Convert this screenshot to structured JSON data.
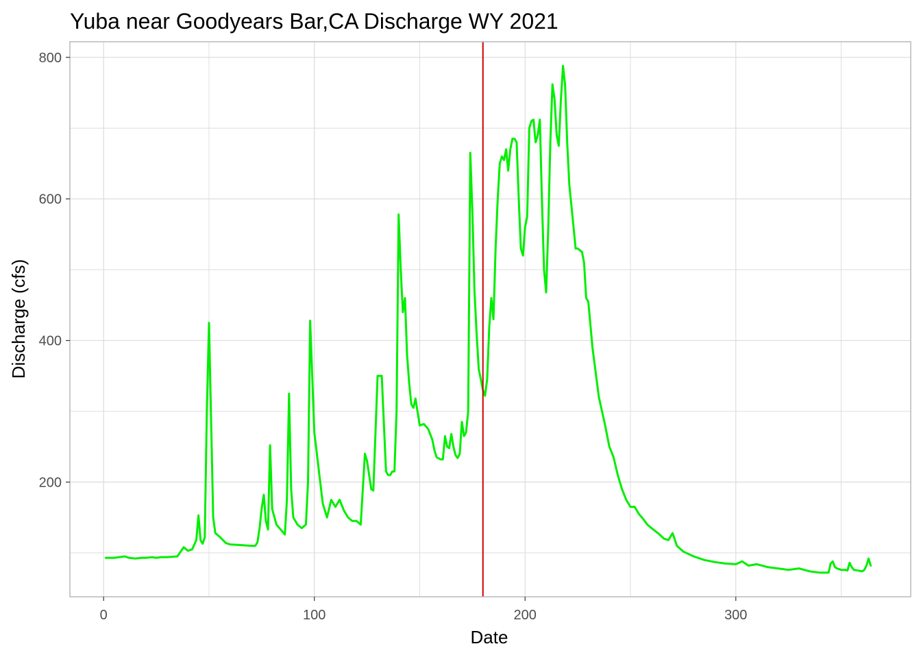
{
  "chart_data": {
    "type": "line",
    "title": "Yuba near Goodyears Bar,CA Discharge WY 2021",
    "xlabel": "Date",
    "ylabel": "Discharge (cfs)",
    "xlim": [
      -16,
      383
    ],
    "ylim": [
      38,
      822
    ],
    "x_ticks": [
      0,
      100,
      200,
      300
    ],
    "y_ticks": [
      200,
      400,
      600,
      800
    ],
    "grid": true,
    "legend": "none",
    "colors": {
      "series": "#00ee00",
      "vline": "#cc0000",
      "grid": "#dedede",
      "panel_border": "#b3b3b3"
    },
    "vline": {
      "x": 180
    },
    "series": [
      {
        "x": [
          1,
          5,
          10,
          12,
          15,
          18,
          20,
          23,
          25,
          27,
          30,
          35,
          38,
          40,
          42,
          44,
          45,
          46,
          47,
          48,
          49,
          50,
          51,
          52,
          53,
          55,
          58,
          60,
          65,
          70,
          72,
          73,
          74,
          75,
          76,
          77,
          78,
          79,
          80,
          82,
          84,
          86,
          87,
          88,
          89,
          90,
          92,
          94,
          96,
          97,
          98,
          100,
          104,
          106,
          108,
          110,
          112,
          114,
          116,
          118,
          120,
          122,
          124,
          125,
          126,
          127,
          128,
          130,
          132,
          134,
          135,
          136,
          137,
          138,
          139,
          140,
          141,
          142,
          143,
          144,
          145,
          146,
          147,
          148,
          150,
          152,
          154,
          156,
          157,
          158,
          160,
          161,
          162,
          163,
          164,
          165,
          166,
          167,
          168,
          169,
          170,
          171,
          172,
          173,
          174,
          175,
          176,
          177,
          178,
          179,
          180,
          181,
          182,
          183,
          184,
          185,
          186,
          187,
          188,
          189,
          190,
          191,
          192,
          193,
          194,
          195,
          196,
          197,
          198,
          199,
          200,
          201,
          202,
          203,
          204,
          205,
          206,
          207,
          208,
          209,
          210,
          211,
          212,
          213,
          214,
          215,
          216,
          217,
          218,
          219,
          220,
          221,
          222,
          223,
          224,
          225,
          227,
          228,
          229,
          230,
          232,
          235,
          238,
          240,
          242,
          244,
          246,
          248,
          250,
          252,
          254,
          256,
          258,
          260,
          263,
          266,
          268,
          270,
          272,
          275,
          280,
          285,
          290,
          295,
          300,
          303,
          306,
          310,
          315,
          320,
          325,
          330,
          335,
          340,
          343,
          344,
          345,
          346,
          347,
          348,
          350,
          352,
          353,
          354,
          355,
          356,
          358,
          360,
          361,
          362,
          363,
          364
        ],
        "y": [
          93,
          93,
          95,
          93,
          92,
          93,
          93,
          94,
          93,
          94,
          94,
          95,
          108,
          103,
          105,
          118,
          153,
          118,
          113,
          122,
          303,
          425,
          290,
          150,
          128,
          123,
          114,
          112,
          111,
          110,
          110,
          115,
          135,
          162,
          182,
          145,
          133,
          252,
          162,
          140,
          133,
          126,
          175,
          325,
          190,
          150,
          140,
          135,
          140,
          200,
          428,
          270,
          170,
          150,
          175,
          165,
          175,
          160,
          150,
          145,
          145,
          140,
          240,
          230,
          210,
          190,
          188,
          350,
          350,
          215,
          210,
          210,
          215,
          215,
          300,
          578,
          500,
          440,
          460,
          380,
          340,
          310,
          305,
          318,
          280,
          282,
          275,
          260,
          245,
          235,
          232,
          232,
          265,
          250,
          248,
          268,
          250,
          238,
          234,
          240,
          285,
          265,
          270,
          300,
          665,
          580,
          470,
          410,
          360,
          345,
          330,
          322,
          345,
          420,
          460,
          430,
          530,
          600,
          650,
          660,
          655,
          670,
          640,
          670,
          685,
          685,
          680,
          600,
          530,
          520,
          560,
          575,
          700,
          710,
          712,
          680,
          690,
          712,
          600,
          500,
          468,
          560,
          680,
          762,
          740,
          690,
          675,
          740,
          788,
          760,
          680,
          620,
          590,
          560,
          530,
          530,
          525,
          510,
          460,
          455,
          390,
          320,
          280,
          250,
          235,
          210,
          190,
          175,
          165,
          165,
          155,
          148,
          140,
          135,
          128,
          120,
          118,
          128,
          110,
          102,
          95,
          90,
          87,
          85,
          84,
          88,
          82,
          84,
          80,
          78,
          76,
          78,
          74,
          72,
          72,
          72,
          85,
          88,
          80,
          78,
          76,
          76,
          75,
          86,
          80,
          76,
          75,
          74,
          76,
          82,
          92,
          82
        ],
        "color": "#00ee00"
      }
    ]
  }
}
